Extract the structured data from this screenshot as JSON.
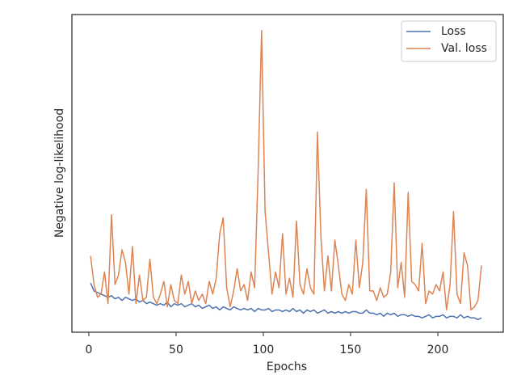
{
  "chart_data": {
    "type": "line",
    "xlabel": "Epochs",
    "ylabel": "Negative log-likelihood",
    "xlim": [
      -9.7,
      237.5
    ],
    "xticks": [
      0,
      50,
      100,
      150,
      200
    ],
    "ylim": [
      0,
      100
    ],
    "legend": "upper right",
    "x": [
      1,
      3,
      5,
      7,
      9,
      11,
      13,
      15,
      17,
      19,
      21,
      23,
      25,
      27,
      29,
      31,
      33,
      35,
      37,
      39,
      41,
      43,
      45,
      47,
      49,
      51,
      53,
      55,
      57,
      59,
      61,
      63,
      65,
      67,
      69,
      71,
      73,
      75,
      77,
      79,
      81,
      83,
      85,
      87,
      89,
      91,
      93,
      95,
      97,
      99,
      101,
      103,
      105,
      107,
      109,
      111,
      113,
      115,
      117,
      119,
      121,
      123,
      125,
      127,
      129,
      131,
      133,
      135,
      137,
      139,
      141,
      143,
      145,
      147,
      149,
      151,
      153,
      155,
      157,
      159,
      161,
      163,
      165,
      167,
      169,
      171,
      173,
      175,
      177,
      179,
      181,
      183,
      185,
      187,
      189,
      191,
      193,
      195,
      197,
      199,
      201,
      203,
      205,
      207,
      209,
      211,
      213,
      215,
      217,
      219,
      221,
      223,
      225
    ],
    "series": [
      {
        "name": "Loss",
        "color": "#4c72b0",
        "values": [
          15.5,
          13,
          12.5,
          12,
          11.5,
          11,
          11.5,
          10.5,
          11,
          10,
          11,
          10.5,
          10,
          10.5,
          9.5,
          10,
          9,
          9.5,
          9,
          8.5,
          9,
          8.5,
          9.5,
          8,
          9,
          8.5,
          9,
          8,
          8.5,
          9,
          8,
          8.5,
          7.5,
          8,
          8.5,
          7.5,
          8,
          7,
          8,
          7.5,
          7,
          8,
          7.5,
          7,
          7.5,
          7,
          7.5,
          6.5,
          7.5,
          7,
          7,
          7.5,
          6.5,
          7,
          7,
          6.5,
          7,
          6.5,
          7.5,
          6.5,
          7,
          6,
          7,
          6.5,
          7,
          6,
          6.5,
          7,
          6,
          6.5,
          6,
          6.5,
          6,
          6.5,
          6,
          6.5,
          6.5,
          6,
          6,
          7,
          6,
          6,
          5.5,
          6,
          5,
          6,
          5.5,
          6,
          5,
          5.5,
          5.5,
          5,
          5.5,
          5,
          5,
          4.5,
          5,
          5.5,
          4.5,
          5,
          5,
          5.5,
          4.5,
          5,
          5,
          4.5,
          5.5,
          4.5,
          5,
          4.5,
          4.5,
          4,
          4.5
        ]
      },
      {
        "name": "Val. loss",
        "color": "#dd8452",
        "values": [
          24,
          15,
          11,
          12,
          19,
          9,
          37,
          15,
          18,
          26,
          22,
          12,
          27,
          9,
          18,
          10,
          11,
          23,
          11,
          9,
          12,
          16,
          8,
          15,
          10,
          9,
          18,
          12,
          16,
          9,
          13,
          10,
          12,
          9,
          16,
          12,
          17,
          31,
          36,
          14,
          8,
          13,
          20,
          13,
          15,
          10,
          19,
          14,
          50,
          95,
          38,
          25,
          12,
          19,
          14,
          31,
          12,
          17,
          11,
          35,
          15,
          12,
          20,
          14,
          12,
          63,
          30,
          13,
          24,
          13,
          29,
          21,
          12,
          10,
          15,
          12,
          29,
          14,
          22,
          45,
          13,
          13,
          10,
          14,
          11,
          12,
          19,
          47,
          14,
          22,
          11,
          44,
          16,
          15,
          13,
          28,
          9,
          13,
          12,
          15,
          13,
          19,
          7,
          15,
          38,
          12,
          9,
          25,
          21,
          7,
          8,
          10,
          21
        ]
      }
    ]
  }
}
